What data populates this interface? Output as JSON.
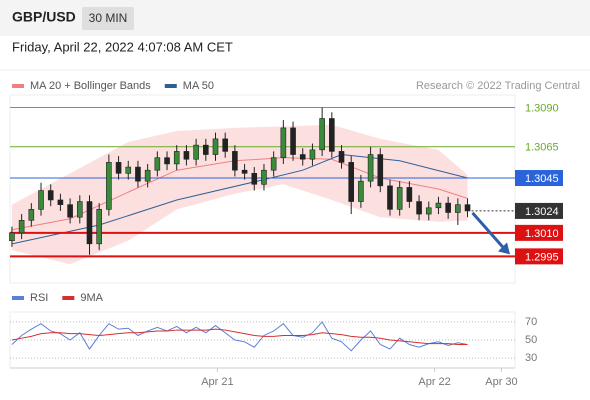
{
  "header": {
    "symbol": "GBP/USD",
    "timeframe": "30 MIN",
    "timestamp": "Friday, April 22, 2022 4:07:08 AM CET"
  },
  "chart_data": [
    {
      "type": "candlestick",
      "source": "Research © 2022 Trading Central",
      "up_color": "#3a8a3a",
      "down_color": "#222222",
      "xlim": [
        -0.2,
        52
      ],
      "ylim": [
        1.2978,
        1.3098
      ],
      "candles": [
        [
          1.3005,
          1.3014,
          1.3001,
          1.301
        ],
        [
          1.301,
          1.3022,
          1.3006,
          1.3018
        ],
        [
          1.3018,
          1.3029,
          1.3014,
          1.3025
        ],
        [
          1.3025,
          1.3042,
          1.3021,
          1.3037
        ],
        [
          1.3037,
          1.3041,
          1.3027,
          1.3031
        ],
        [
          1.3031,
          1.3035,
          1.3024,
          1.3028
        ],
        [
          1.3028,
          1.3032,
          1.3016,
          1.302
        ],
        [
          1.302,
          1.3034,
          1.3016,
          1.303
        ],
        [
          1.303,
          1.3034,
          1.2996,
          1.3003
        ],
        [
          1.3003,
          1.3029,
          1.2999,
          1.3025
        ],
        [
          1.3025,
          1.306,
          1.3021,
          1.3055
        ],
        [
          1.3055,
          1.3059,
          1.3044,
          1.3048
        ],
        [
          1.3048,
          1.3056,
          1.3044,
          1.3052
        ],
        [
          1.3052,
          1.3056,
          1.3039,
          1.3043
        ],
        [
          1.3043,
          1.3054,
          1.3039,
          1.305
        ],
        [
          1.305,
          1.3062,
          1.3046,
          1.3058
        ],
        [
          1.3058,
          1.3062,
          1.305,
          1.3054
        ],
        [
          1.3054,
          1.3066,
          1.305,
          1.3062
        ],
        [
          1.3062,
          1.3066,
          1.3053,
          1.3057
        ],
        [
          1.3057,
          1.307,
          1.3053,
          1.3066
        ],
        [
          1.3066,
          1.307,
          1.3056,
          1.306
        ],
        [
          1.306,
          1.3074,
          1.3056,
          1.307
        ],
        [
          1.307,
          1.3074,
          1.3058,
          1.3062
        ],
        [
          1.3062,
          1.3066,
          1.3046,
          1.305
        ],
        [
          1.305,
          1.3054,
          1.3044,
          1.3048
        ],
        [
          1.3048,
          1.3052,
          1.3037,
          1.3041
        ],
        [
          1.3041,
          1.3054,
          1.3037,
          1.305
        ],
        [
          1.305,
          1.3062,
          1.3046,
          1.3058
        ],
        [
          1.3058,
          1.3082,
          1.3054,
          1.3077
        ],
        [
          1.3077,
          1.3081,
          1.3056,
          1.306
        ],
        [
          1.306,
          1.3064,
          1.3053,
          1.3057
        ],
        [
          1.3057,
          1.3067,
          1.3053,
          1.3063
        ],
        [
          1.3063,
          1.309,
          1.3059,
          1.3083
        ],
        [
          1.3083,
          1.3087,
          1.3058,
          1.3062
        ],
        [
          1.3062,
          1.3066,
          1.3051,
          1.3055
        ],
        [
          1.3055,
          1.3059,
          1.3022,
          1.303
        ],
        [
          1.303,
          1.3047,
          1.3026,
          1.3043
        ],
        [
          1.3043,
          1.3065,
          1.3039,
          1.306
        ],
        [
          1.306,
          1.3064,
          1.3036,
          1.304
        ],
        [
          1.304,
          1.3044,
          1.3021,
          1.3025
        ],
        [
          1.3025,
          1.3043,
          1.3021,
          1.3039
        ],
        [
          1.3039,
          1.3043,
          1.3026,
          1.303
        ],
        [
          1.303,
          1.3034,
          1.3018,
          1.3022
        ],
        [
          1.3022,
          1.303,
          1.3018,
          1.3026
        ],
        [
          1.3026,
          1.3033,
          1.3022,
          1.3029
        ],
        [
          1.3029,
          1.3033,
          1.3019,
          1.3023
        ],
        [
          1.3023,
          1.3032,
          1.3015,
          1.3028
        ],
        [
          1.3028,
          1.3032,
          1.302,
          1.3024
        ]
      ],
      "series": [
        {
          "name": "MA 20 + Bollinger Bands",
          "color": "#f08080",
          "band_color": "#fbd3d3",
          "x": [
            0,
            6,
            12,
            17,
            23,
            28,
            33,
            38,
            44,
            47
          ],
          "values": [
            1.3012,
            1.3019,
            1.3036,
            1.305,
            1.3056,
            1.3058,
            1.3057,
            1.3045,
            1.3038,
            1.3032
          ],
          "upper": [
            1.3028,
            1.3048,
            1.3068,
            1.3075,
            1.3077,
            1.3078,
            1.3079,
            1.307,
            1.3063,
            1.3047
          ],
          "lower": [
            1.2999,
            1.299,
            1.3005,
            1.3025,
            1.3035,
            1.3041,
            1.3031,
            1.302,
            1.3017,
            1.3018
          ]
        },
        {
          "name": "MA 50",
          "color": "#2f5f98",
          "x": [
            0,
            9,
            17,
            26,
            30,
            34,
            40,
            47
          ],
          "values": [
            1.3003,
            1.3015,
            1.3031,
            1.3044,
            1.305,
            1.306,
            1.3056,
            1.3045
          ]
        }
      ],
      "levels": [
        {
          "value": 1.309,
          "label": "1.3090",
          "color": "#6aaa2a",
          "boxed": false
        },
        {
          "value": 1.3065,
          "label": "1.3065",
          "color": "#6aaa2a",
          "boxed": false
        },
        {
          "value": 1.3045,
          "label": "1.3045",
          "color": "#2a64d8",
          "boxed": true
        },
        {
          "value": 1.3024,
          "label": "1.3024",
          "color": "#333333",
          "boxed": true,
          "dotted": true
        },
        {
          "value": 1.301,
          "label": "1.3010",
          "color": "#dd1111",
          "boxed": true
        },
        {
          "value": 1.2995,
          "label": "1.2995",
          "color": "#dd1111",
          "boxed": true
        }
      ]
    },
    {
      "type": "line",
      "xlim": [
        -0.2,
        52
      ],
      "ylim": [
        19,
        81
      ],
      "yticks": [
        70,
        50,
        30
      ],
      "xticks": [
        {
          "value": 21.2,
          "label": "Apr 21"
        },
        {
          "value": 43.6,
          "label": "Apr 22"
        },
        {
          "value": 50.5,
          "label": "Apr 30"
        }
      ],
      "series": [
        {
          "name": "RSI",
          "color": "#5b7fd6",
          "values": [
            45,
            55,
            62,
            68,
            60,
            57,
            50,
            58,
            40,
            55,
            68,
            62,
            63,
            55,
            60,
            64,
            60,
            65,
            58,
            64,
            58,
            66,
            58,
            50,
            48,
            42,
            55,
            60,
            68,
            55,
            53,
            58,
            70,
            52,
            48,
            38,
            50,
            60,
            45,
            40,
            52,
            45,
            42,
            46,
            48,
            44,
            47,
            45
          ]
        },
        {
          "name": "9MA",
          "color": "#d32f2f",
          "values": [
            50,
            52,
            54,
            57,
            58,
            58,
            57,
            57,
            56,
            55,
            56,
            57,
            58,
            58,
            59,
            60,
            60,
            61,
            61,
            61,
            61,
            62,
            61,
            59,
            57,
            55,
            54,
            54,
            55,
            55,
            55,
            56,
            58,
            57,
            56,
            54,
            53,
            53,
            52,
            50,
            49,
            48,
            47,
            46,
            46,
            46,
            45,
            45
          ]
        }
      ]
    }
  ]
}
